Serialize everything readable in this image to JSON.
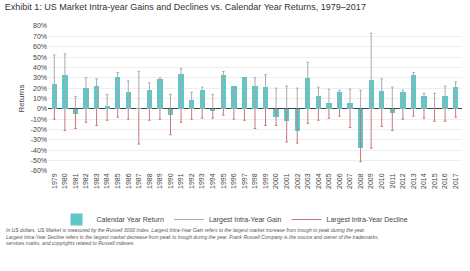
{
  "chart_data": {
    "type": "bar",
    "title": "Exhibit 1: US Market Intra-year Gains and Declines vs. Calendar Year Returns, 1979–2017",
    "ylabel": "Returns",
    "categories": [
      "1979",
      "1980",
      "1981",
      "1982",
      "1983",
      "1984",
      "1985",
      "1986",
      "1987",
      "1988",
      "1989",
      "1990",
      "1991",
      "1992",
      "1993",
      "1994",
      "1995",
      "1996",
      "1997",
      "1998",
      "1999",
      "2000",
      "2001",
      "2002",
      "2003",
      "2004",
      "2005",
      "2006",
      "2007",
      "2008",
      "2009",
      "2010",
      "2011",
      "2012",
      "2013",
      "2014",
      "2015",
      "2016",
      "2017"
    ],
    "series": [
      {
        "name": "Calendar Year Return",
        "type": "bar",
        "color": "#5ec8c8",
        "values": [
          24,
          33,
          -5,
          20,
          22,
          3,
          31,
          16,
          1,
          18,
          29,
          -6,
          34,
          9,
          18,
          -2,
          33,
          22,
          31,
          22,
          21,
          -8,
          -12,
          -21,
          30,
          12,
          6,
          16,
          6,
          -38,
          28,
          17,
          -4,
          16,
          33,
          12,
          0,
          12,
          21
        ]
      },
      {
        "name": "Largest Intra-Year Gain",
        "type": "stem",
        "color": "#aaaaaa",
        "values": [
          52,
          53,
          12,
          30,
          29,
          14,
          35,
          27,
          36,
          25,
          30,
          14,
          39,
          16,
          21,
          14,
          36,
          20,
          28,
          30,
          33,
          20,
          22,
          20,
          45,
          21,
          19,
          18,
          19,
          18,
          73,
          29,
          21,
          18,
          35,
          15,
          15,
          22,
          26
        ]
      },
      {
        "name": "Largest Intra-Year Decline",
        "type": "stem",
        "color": "#c87878",
        "values": [
          -10,
          -21,
          -19,
          -13,
          -16,
          -11,
          -8,
          -10,
          -34,
          -11,
          -10,
          -25,
          -13,
          -10,
          -9,
          -9,
          -6,
          -10,
          -11,
          -19,
          -16,
          -16,
          -32,
          -33,
          -14,
          -11,
          -9,
          -7,
          -18,
          -51,
          -38,
          -17,
          -21,
          -10,
          -7,
          -9,
          -12,
          -12,
          -8
        ]
      }
    ],
    "ylim": [
      -60,
      80
    ],
    "yticks": [
      {
        "value": -60,
        "label": "-60%"
      },
      {
        "value": -50,
        "label": "-50%"
      },
      {
        "value": -40,
        "label": "-40%"
      },
      {
        "value": -30,
        "label": "-30%"
      },
      {
        "value": -20,
        "label": "-20%"
      },
      {
        "value": -10,
        "label": "-10%"
      },
      {
        "value": 0,
        "label": "0%"
      },
      {
        "value": 10,
        "label": "10%"
      },
      {
        "value": 20,
        "label": "20%"
      },
      {
        "value": 30,
        "label": "30%"
      },
      {
        "value": 40,
        "label": "40%"
      },
      {
        "value": 50,
        "label": "50%"
      },
      {
        "value": 60,
        "label": "60%"
      },
      {
        "value": 70,
        "label": "70%"
      },
      {
        "value": 80,
        "label": "80%"
      }
    ],
    "grid": true,
    "legend": "bottom",
    "annotations": [
      "In US dollars. US Market is measured by the Russell 3000 Index. Largest Intra-Year Gain refers to the largest market increase from trough to peak during the year.\nLargest Intra-Year Decline refers to the largest market decrease from peak to trough during the year. Frank Russell Company is the source and owner of the trademarks,\nservices marks, and copyrights related to Russell indexes."
    ]
  }
}
